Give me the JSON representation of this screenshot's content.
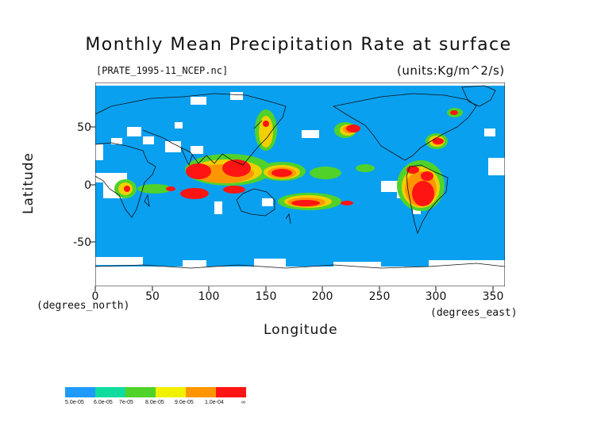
{
  "title": "Monthly Mean Precipitation Rate at surface",
  "file_label": "[PRATE_1995-11_NCEP.nc]",
  "units_label": "(units:Kg/m^2/s)",
  "y_axis": {
    "label": "Latitude",
    "unit": "(degrees_north)",
    "ticks": [
      "50",
      "0",
      "-50"
    ]
  },
  "x_axis": {
    "label": "Longitude",
    "unit": "(degrees_east)",
    "ticks": [
      "0",
      "50",
      "100",
      "150",
      "200",
      "250",
      "300",
      "350"
    ]
  },
  "legend": {
    "labels": [
      "5.0e-05",
      "6.0e-05",
      "7e-05",
      "8.0e-05",
      "9.0e-05",
      "1.0e-04",
      "∞"
    ],
    "colors": [
      "#1e9bfa",
      "#10dca0",
      "#50d22a",
      "#f0f000",
      "#ff9600",
      "#ff1414"
    ]
  },
  "colors": {
    "base": "#0aa0f0",
    "missing": "#ffffff",
    "coast": "#111111"
  }
}
